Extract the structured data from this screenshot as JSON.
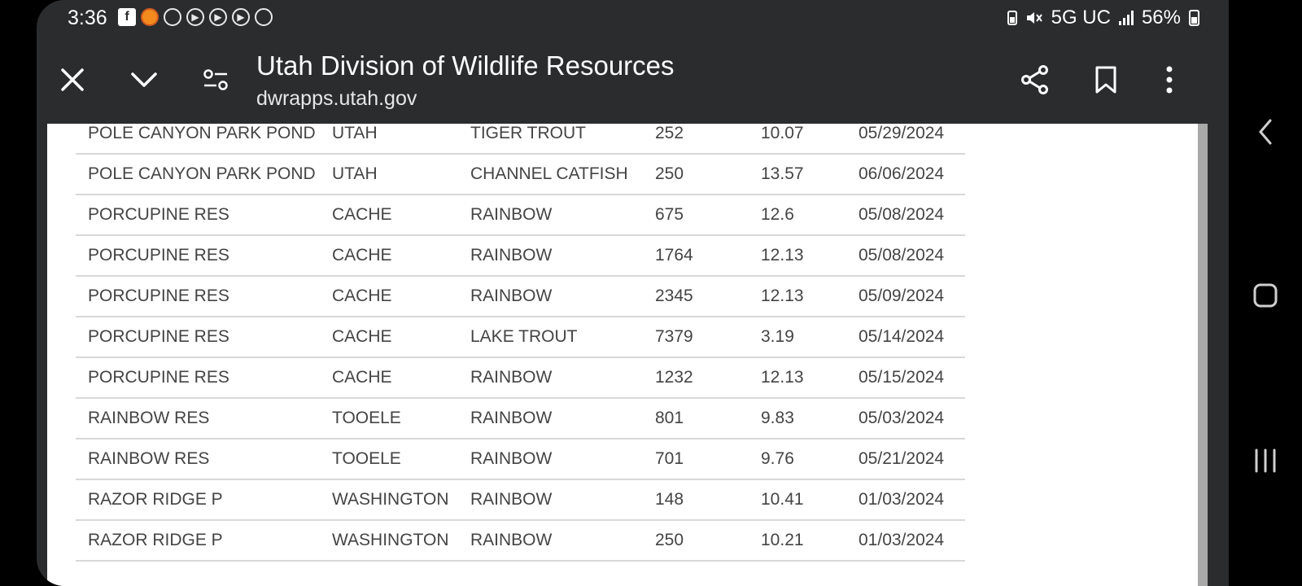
{
  "status_bar": {
    "time": "3:36",
    "network": "5G UC",
    "battery": "56%"
  },
  "toolbar": {
    "title": "Utah Division of Wildlife Resources",
    "url": "dwrapps.utah.gov"
  },
  "table": {
    "rows": [
      [
        "POLE CANYON PARK POND",
        "UTAH",
        "TIGER TROUT",
        "252",
        "10.07",
        "05/29/2024"
      ],
      [
        "POLE CANYON PARK POND",
        "UTAH",
        "CHANNEL CATFISH",
        "250",
        "13.57",
        "06/06/2024"
      ],
      [
        "PORCUPINE RES",
        "CACHE",
        "RAINBOW",
        "675",
        "12.6",
        "05/08/2024"
      ],
      [
        "PORCUPINE RES",
        "CACHE",
        "RAINBOW",
        "1764",
        "12.13",
        "05/08/2024"
      ],
      [
        "PORCUPINE RES",
        "CACHE",
        "RAINBOW",
        "2345",
        "12.13",
        "05/09/2024"
      ],
      [
        "PORCUPINE RES",
        "CACHE",
        "LAKE TROUT",
        "7379",
        "3.19",
        "05/14/2024"
      ],
      [
        "PORCUPINE RES",
        "CACHE",
        "RAINBOW",
        "1232",
        "12.13",
        "05/15/2024"
      ],
      [
        "RAINBOW RES",
        "TOOELE",
        "RAINBOW",
        "801",
        "9.83",
        "05/03/2024"
      ],
      [
        "RAINBOW RES",
        "TOOELE",
        "RAINBOW",
        "701",
        "9.76",
        "05/21/2024"
      ],
      [
        "RAZOR RIDGE P",
        "WASHINGTON",
        "RAINBOW",
        "148",
        "10.41",
        "01/03/2024"
      ],
      [
        "RAZOR RIDGE P",
        "WASHINGTON",
        "RAINBOW",
        "250",
        "10.21",
        "01/03/2024"
      ]
    ]
  }
}
